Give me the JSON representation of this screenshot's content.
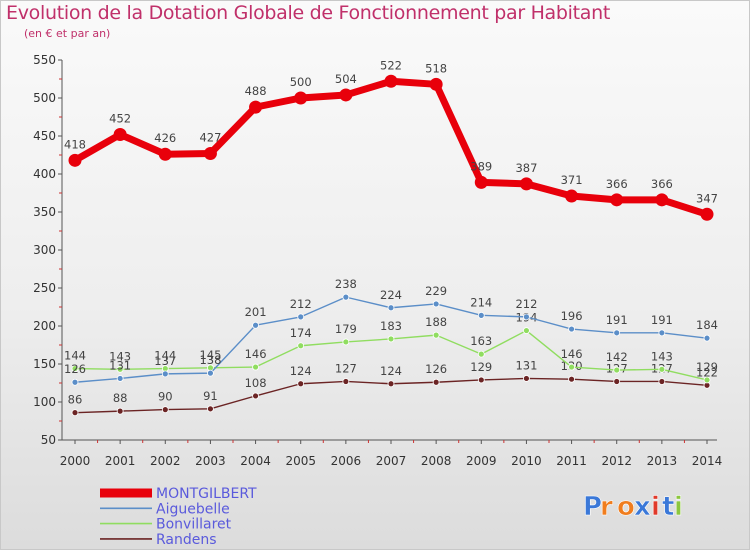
{
  "title": "Evolution de la Dotation Globale de Fonctionnement par Habitant",
  "subtitle": "(en € et par an)",
  "logo": "Proxiti",
  "chart_data": {
    "type": "line",
    "title": "Evolution de la Dotation Globale de Fonctionnement par Habitant",
    "subtitle": "(en € et par an)",
    "xlabel": "",
    "ylabel": "",
    "x": [
      "2000",
      "2001",
      "2002",
      "2003",
      "2004",
      "2005",
      "2006",
      "2007",
      "2008",
      "2009",
      "2010",
      "2011",
      "2012",
      "2013",
      "2014"
    ],
    "ylim": [
      50,
      550
    ],
    "yticks": [
      50,
      100,
      150,
      200,
      250,
      300,
      350,
      400,
      450,
      500,
      550
    ],
    "grid": false,
    "legend": "bottom-left",
    "series": [
      {
        "name": "MONTGILBERT",
        "color": "#e8000b",
        "values": [
          418,
          452,
          426,
          427,
          488,
          500,
          504,
          522,
          518,
          389,
          387,
          371,
          366,
          366,
          347
        ]
      },
      {
        "name": "Aiguebelle",
        "color": "#5b8ec8",
        "values": [
          126,
          131,
          137,
          138,
          201,
          212,
          238,
          224,
          229,
          214,
          212,
          196,
          191,
          191,
          184
        ]
      },
      {
        "name": "Bonvillaret",
        "color": "#90dd60",
        "values": [
          144,
          143,
          144,
          145,
          146,
          174,
          179,
          183,
          188,
          163,
          194,
          146,
          142,
          143,
          129
        ]
      },
      {
        "name": "Randens",
        "color": "#6b2424",
        "values": [
          86,
          88,
          90,
          91,
          108,
          124,
          127,
          124,
          126,
          129,
          131,
          130,
          127,
          127,
          122
        ]
      }
    ]
  }
}
